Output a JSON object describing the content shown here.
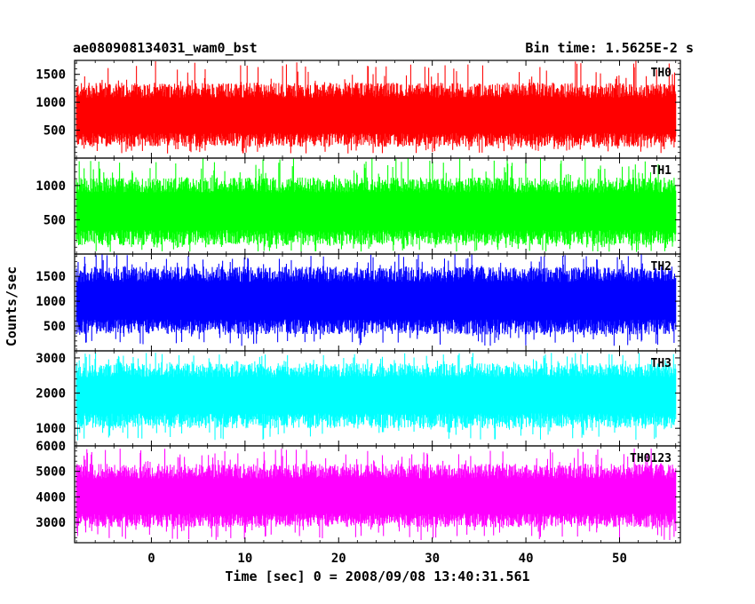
{
  "chart_data": {
    "type": "line",
    "title": "ae080908134031_wam0_bst",
    "subtitle": "Bin time: 1.5625E-2 s",
    "xlabel": "Time [sec] 0 = 2008/09/08 13:40:31.561",
    "ylabel": "Counts/sec",
    "xlim": [
      -8.2,
      56.5
    ],
    "data_range": [
      -8.0,
      56.0
    ],
    "x_ticks": [
      0,
      10,
      20,
      30,
      40,
      50
    ],
    "legend": "none",
    "grid": false,
    "panels": [
      {
        "label": "TH0",
        "color": "#ff0000",
        "ylim": [
          0,
          1750
        ],
        "y_ticks": [
          500,
          1000,
          1500
        ],
        "mean": 750,
        "typical_min": 200,
        "typical_max": 1350,
        "spike_min": 80,
        "spike_max": 1750
      },
      {
        "label": "TH1",
        "color": "#00ff00",
        "ylim": [
          0,
          1400
        ],
        "y_ticks": [
          500,
          1000
        ],
        "mean": 620,
        "typical_min": 130,
        "typical_max": 1120,
        "spike_min": 30,
        "spike_max": 1400
      },
      {
        "label": "TH2",
        "color": "#0000ff",
        "ylim": [
          0,
          1950
        ],
        "y_ticks": [
          500,
          1000,
          1500
        ],
        "mean": 1000,
        "typical_min": 330,
        "typical_max": 1700,
        "spike_min": 100,
        "spike_max": 1950
      },
      {
        "label": "TH3",
        "color": "#00ffff",
        "ylim": [
          500,
          3200
        ],
        "y_ticks": [
          1000,
          2000,
          3000
        ],
        "mean": 1950,
        "typical_min": 1000,
        "typical_max": 2850,
        "spike_min": 650,
        "spike_max": 3150
      },
      {
        "label": "TH0123",
        "color": "#ff00ff",
        "ylim": [
          2200,
          6000
        ],
        "y_ticks": [
          3000,
          4000,
          5000,
          6000
        ],
        "mean": 4000,
        "typical_min": 2800,
        "typical_max": 5300,
        "spike_min": 2300,
        "spike_max": 5900
      }
    ]
  }
}
